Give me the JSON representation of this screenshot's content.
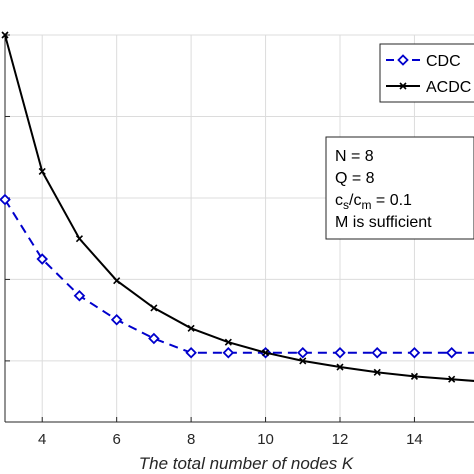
{
  "chart_data": {
    "type": "line",
    "xlabel": "The total number of nodes K",
    "ylabel": "",
    "title": "",
    "x": [
      3,
      4,
      5,
      6,
      7,
      8,
      9,
      10,
      11,
      12,
      13,
      14,
      15,
      16
    ],
    "xlim": [
      3,
      15.6
    ],
    "ylim": [
      0.05,
      1.0
    ],
    "xticks": [
      4,
      6,
      8,
      10,
      12,
      14
    ],
    "yticks": [
      0.2,
      0.4,
      0.6,
      0.8,
      1.0
    ],
    "grid": true,
    "legend_position": "top-right",
    "series": [
      {
        "name": "CDC",
        "color": "#0000cc",
        "line_style": "dashed",
        "marker": "diamond",
        "values": [
          0.596,
          0.45,
          0.36,
          0.301,
          0.255,
          0.22,
          0.22,
          0.22,
          0.22,
          0.22,
          0.22,
          0.22,
          0.22,
          0.22
        ]
      },
      {
        "name": "ACDC",
        "color": "#000000",
        "line_style": "solid",
        "marker": "x",
        "values": [
          1.0,
          0.665,
          0.5,
          0.397,
          0.33,
          0.28,
          0.246,
          0.22,
          0.2,
          0.185,
          0.172,
          0.162,
          0.155,
          0.148
        ]
      }
    ],
    "annotation": {
      "lines": [
        {
          "main": "N = 8"
        },
        {
          "main": "Q = 8"
        },
        {
          "main": "c",
          "sub": "s",
          "mid": "/c",
          "sub2": "m",
          "tail": " = 0.1"
        },
        {
          "main": "M is sufficient"
        }
      ]
    }
  }
}
